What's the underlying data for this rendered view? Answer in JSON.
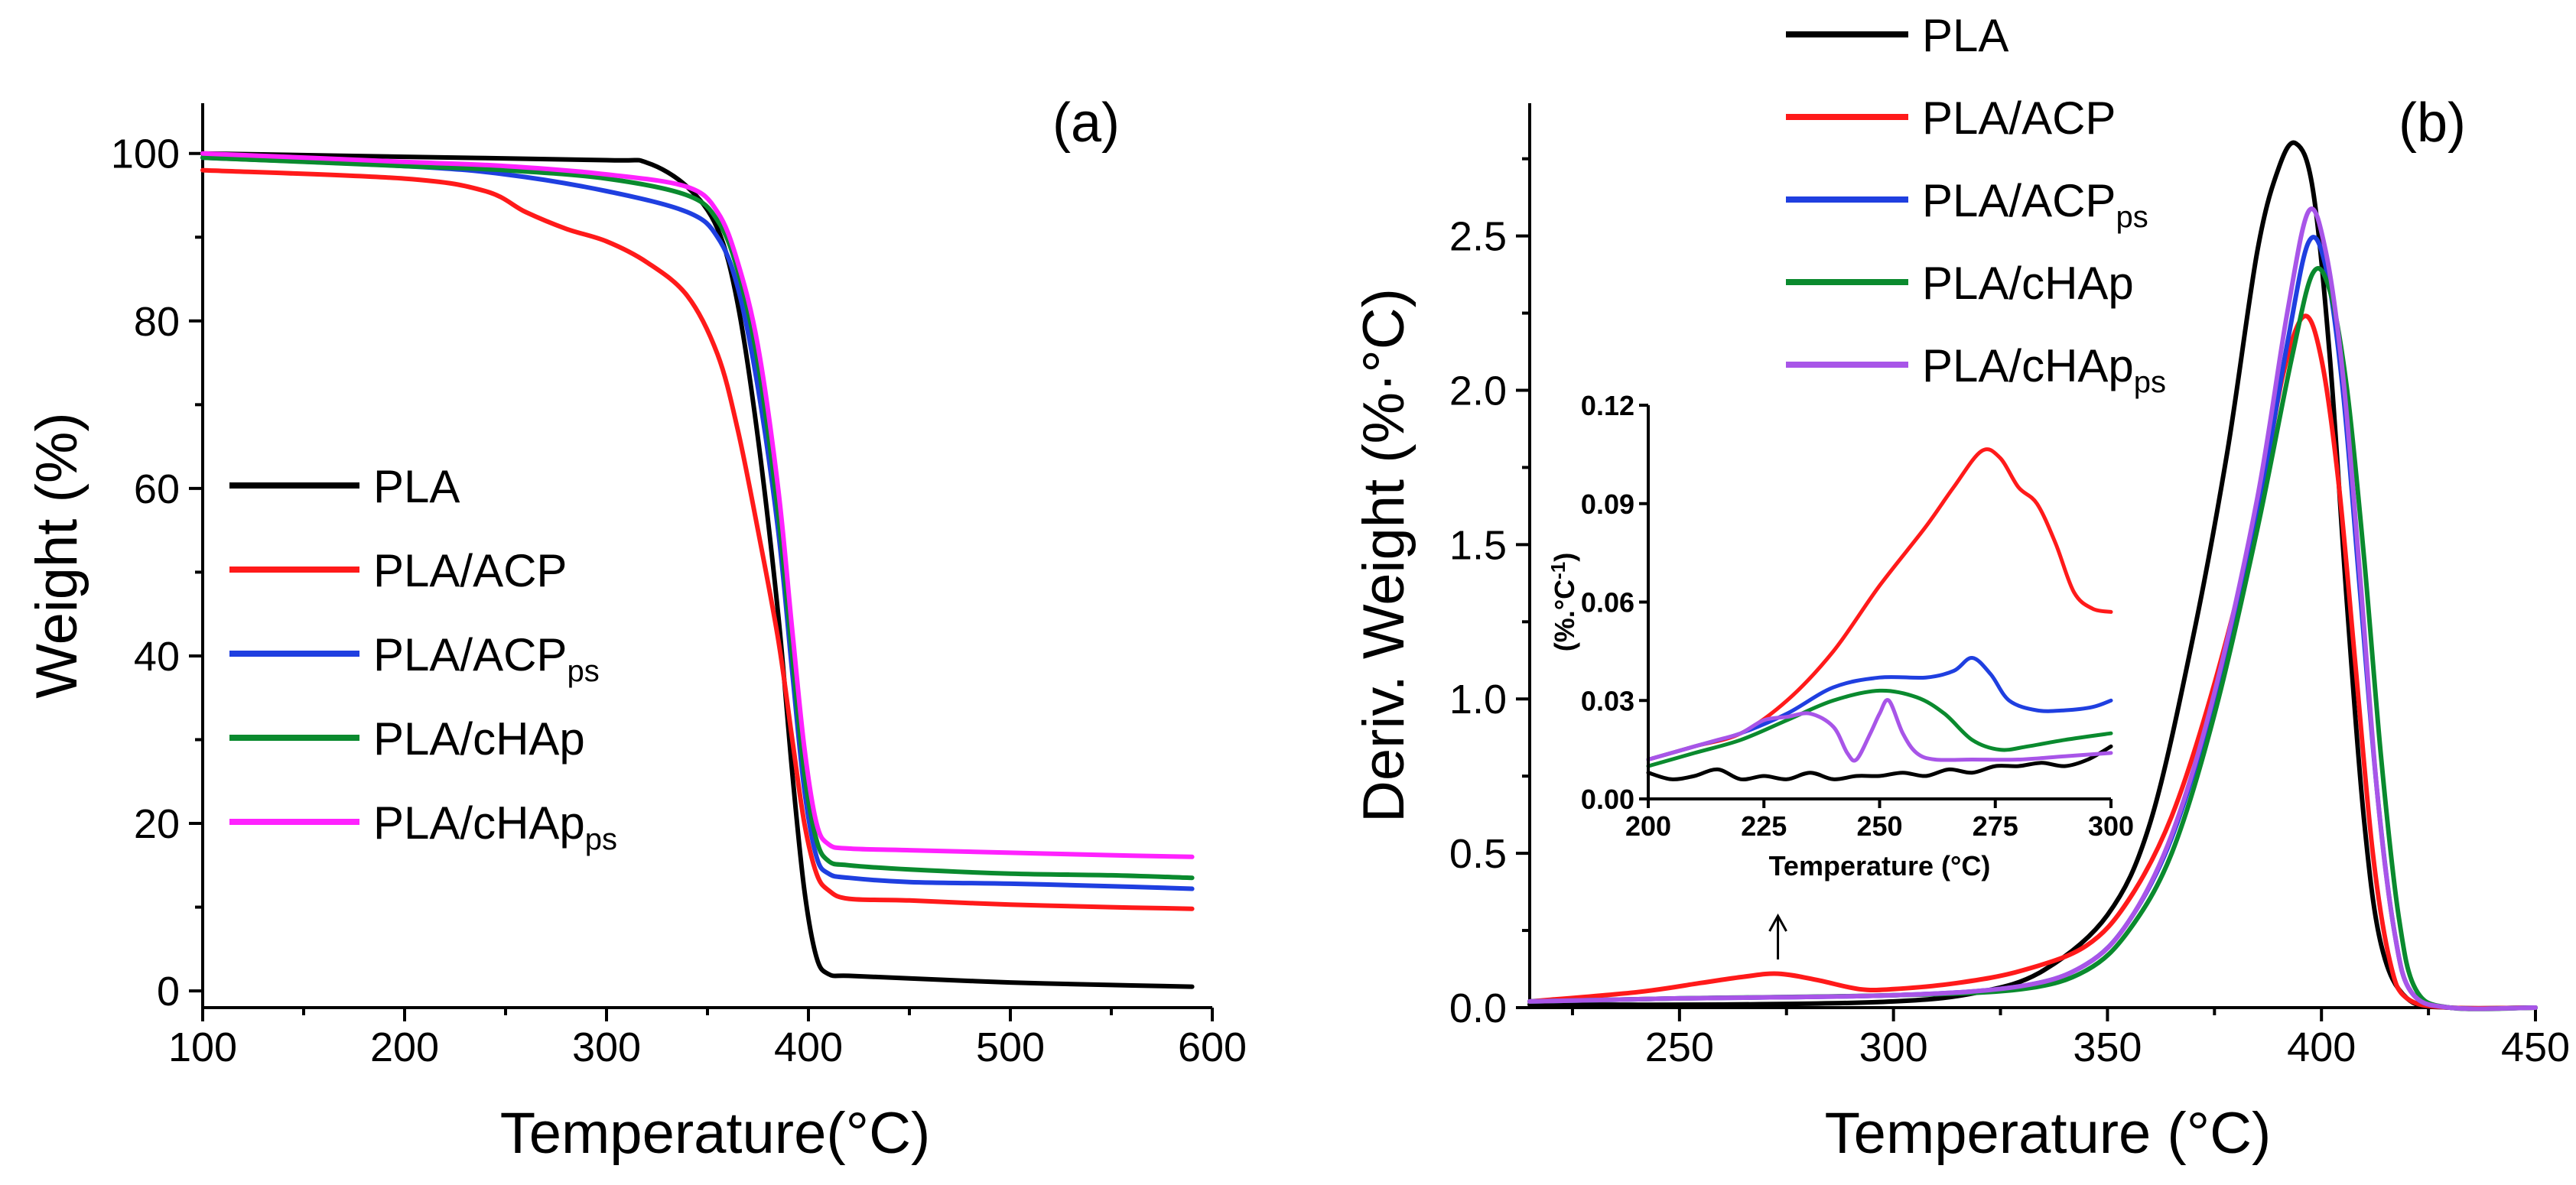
{
  "colors": {
    "PLA": "#000000",
    "PLA/ACP": "#ff1a1a",
    "PLA/ACPps": "#1f3fe0",
    "PLA/cHAp": "#0a8a2e",
    "PLA/cHApps_a": "#ff22ff",
    "PLA/cHApps_b": "#a855e8"
  },
  "chart_data": [
    {
      "type": "line",
      "panel": "(a)",
      "xlabel": "Temperature(°C)",
      "ylabel": "Weight (%)",
      "xlim": [
        100,
        600
      ],
      "ylim": [
        -2,
        106
      ],
      "xticks": [
        "100",
        "200",
        "300",
        "400",
        "500",
        "600"
      ],
      "yticks": [
        "0",
        "20",
        "40",
        "60",
        "80",
        "100"
      ],
      "legend_position": "center-left",
      "legend": [
        {
          "label": "PLA",
          "sub": "",
          "color_key": "PLA"
        },
        {
          "label": "PLA/ACP",
          "sub": "",
          "color_key": "PLA/ACP"
        },
        {
          "label": "PLA/ACP",
          "sub": "ps",
          "color_key": "PLA/ACPps"
        },
        {
          "label": "PLA/cHAp",
          "sub": "",
          "color_key": "PLA/cHAp"
        },
        {
          "label": "PLA/cHAp",
          "sub": "ps",
          "color_key": "PLA/cHApps_a"
        }
      ],
      "series": [
        {
          "name": "PLA",
          "color_key": "PLA",
          "x": [
            100,
            200,
            300,
            320,
            340,
            355,
            365,
            375,
            385,
            392,
            398,
            404,
            410,
            420,
            450,
            500,
            550,
            590
          ],
          "y": [
            100,
            99.6,
            99.2,
            98.9,
            96,
            91,
            82,
            66,
            45,
            26,
            12,
            4,
            2,
            1.8,
            1.5,
            1,
            0.7,
            0.5
          ]
        },
        {
          "name": "PLA/ACP",
          "color_key": "PLA/ACP",
          "x": [
            100,
            200,
            240,
            260,
            280,
            300,
            320,
            340,
            355,
            365,
            375,
            385,
            392,
            398,
            404,
            410,
            420,
            450,
            500,
            550,
            590
          ],
          "y": [
            98,
            97,
            95.5,
            93,
            91,
            89.5,
            87,
            83,
            76,
            67,
            55,
            42,
            30,
            20,
            14,
            12,
            11,
            10.8,
            10.3,
            10,
            9.8
          ]
        },
        {
          "name": "PLA/ACPps",
          "color_key": "PLA/ACPps",
          "x": [
            100,
            200,
            250,
            300,
            340,
            355,
            365,
            375,
            385,
            392,
            398,
            404,
            410,
            420,
            450,
            500,
            550,
            590
          ],
          "y": [
            99.5,
            98.5,
            97.5,
            95.5,
            93,
            90,
            84,
            72,
            55,
            38,
            24,
            16,
            14,
            13.5,
            13,
            12.8,
            12.5,
            12.2
          ]
        },
        {
          "name": "PLA/cHAp",
          "color_key": "PLA/cHAp",
          "x": [
            100,
            200,
            250,
            300,
            340,
            355,
            365,
            375,
            385,
            392,
            398,
            404,
            410,
            420,
            450,
            500,
            550,
            590
          ],
          "y": [
            99.5,
            98.5,
            98,
            97,
            95,
            92,
            86,
            75,
            57,
            40,
            26,
            18,
            15.5,
            15,
            14.5,
            14,
            13.8,
            13.5
          ]
        },
        {
          "name": "PLA/cHApps",
          "color_key": "PLA/cHApps_a",
          "x": [
            100,
            200,
            250,
            300,
            340,
            355,
            365,
            375,
            385,
            392,
            398,
            404,
            410,
            420,
            450,
            500,
            550,
            590
          ],
          "y": [
            100,
            99,
            98.5,
            97.5,
            96,
            93,
            87,
            77,
            60,
            43,
            29,
            20,
            17.5,
            17,
            16.8,
            16.5,
            16.2,
            16
          ]
        }
      ]
    },
    {
      "type": "line",
      "panel": "(b)",
      "xlabel": "Temperature (°C)",
      "ylabel": "Deriv. Weight (%·°C)",
      "xlim": [
        215,
        450
      ],
      "ylim": [
        0,
        2.93
      ],
      "xticks": [
        "250",
        "300",
        "350",
        "400",
        "450"
      ],
      "yticks": [
        "0.0",
        "0.5",
        "1.0",
        "1.5",
        "2.0",
        "2.5"
      ],
      "legend_position": "top-center",
      "legend": [
        {
          "label": "PLA",
          "sub": "",
          "color_key": "PLA"
        },
        {
          "label": "PLA/ACP",
          "sub": "",
          "color_key": "PLA/ACP"
        },
        {
          "label": "PLA/ACP",
          "sub": "ps",
          "color_key": "PLA/ACPps"
        },
        {
          "label": "PLA/cHAp",
          "sub": "",
          "color_key": "PLA/cHAp"
        },
        {
          "label": "PLA/cHAp",
          "sub": "ps",
          "color_key": "PLA/cHApps_b"
        }
      ],
      "arrow_at_x": 273,
      "series": [
        {
          "name": "PLA",
          "color_key": "PLA",
          "x": [
            215,
            260,
            300,
            320,
            335,
            350,
            360,
            370,
            378,
            385,
            390,
            394,
            398,
            402,
            406,
            410,
            414,
            420,
            430,
            450
          ],
          "y": [
            0.01,
            0.01,
            0.02,
            0.05,
            0.12,
            0.3,
            0.6,
            1.2,
            1.8,
            2.45,
            2.72,
            2.8,
            2.65,
            2.1,
            1.3,
            0.6,
            0.2,
            0.03,
            0,
            0
          ]
        },
        {
          "name": "PLA/ACP",
          "color_key": "PLA/ACP",
          "x": [
            215,
            240,
            255,
            265,
            273,
            282,
            292,
            300,
            315,
            330,
            345,
            355,
            365,
            375,
            385,
            391,
            396,
            400,
            404,
            408,
            412,
            416,
            420,
            430,
            450
          ],
          "y": [
            0.02,
            0.05,
            0.08,
            0.1,
            0.11,
            0.09,
            0.06,
            0.06,
            0.08,
            0.12,
            0.2,
            0.35,
            0.62,
            1.05,
            1.6,
            2.05,
            2.24,
            2.1,
            1.7,
            1.1,
            0.5,
            0.15,
            0.03,
            0,
            0
          ]
        },
        {
          "name": "PLA/ACPps",
          "color_key": "PLA/ACPps",
          "x": [
            215,
            250,
            300,
            330,
            345,
            355,
            365,
            375,
            385,
            392,
            397,
            401,
            405,
            409,
            413,
            417,
            421,
            430,
            450
          ],
          "y": [
            0.02,
            0.03,
            0.04,
            0.07,
            0.14,
            0.28,
            0.55,
            1.0,
            1.6,
            2.15,
            2.48,
            2.4,
            2.0,
            1.35,
            0.7,
            0.25,
            0.05,
            0,
            0
          ]
        },
        {
          "name": "PLA/cHAp",
          "color_key": "PLA/cHAp",
          "x": [
            215,
            250,
            300,
            330,
            345,
            355,
            365,
            375,
            385,
            393,
            398,
            402,
            406,
            410,
            414,
            418,
            422,
            430,
            450
          ],
          "y": [
            0.02,
            0.03,
            0.04,
            0.06,
            0.12,
            0.25,
            0.5,
            0.95,
            1.55,
            2.1,
            2.38,
            2.32,
            2.0,
            1.45,
            0.8,
            0.3,
            0.06,
            0,
            0
          ]
        },
        {
          "name": "PLA/cHApps",
          "color_key": "PLA/cHApps_b",
          "x": [
            215,
            250,
            300,
            330,
            345,
            355,
            365,
            375,
            385,
            392,
            397,
            401,
            405,
            409,
            413,
            417,
            421,
            430,
            450
          ],
          "y": [
            0.02,
            0.03,
            0.04,
            0.07,
            0.14,
            0.28,
            0.56,
            1.02,
            1.65,
            2.25,
            2.58,
            2.45,
            2.05,
            1.4,
            0.7,
            0.25,
            0.05,
            0,
            0
          ]
        }
      ],
      "inset": {
        "xlabel": "Temperature (°C)",
        "ylabel": "(%.°C",
        "ylabel_sup": "-1",
        "ylabel_close": ")",
        "xlim": [
          200,
          300
        ],
        "ylim": [
          0,
          0.12
        ],
        "xticks": [
          "200",
          "225",
          "250",
          "275",
          "300"
        ],
        "yticks": [
          "0.00",
          "0.03",
          "0.06",
          "0.09",
          "0.12"
        ],
        "series": [
          {
            "name": "PLA",
            "color_key": "PLA",
            "x": [
              200,
              205,
              210,
              215,
              220,
              225,
              230,
              235,
              240,
              245,
              250,
              255,
              260,
              265,
              270,
              275,
              280,
              285,
              290,
              295,
              300
            ],
            "y": [
              0.008,
              0.006,
              0.007,
              0.009,
              0.006,
              0.007,
              0.006,
              0.008,
              0.006,
              0.007,
              0.007,
              0.008,
              0.007,
              0.009,
              0.008,
              0.01,
              0.01,
              0.011,
              0.01,
              0.012,
              0.016
            ]
          },
          {
            "name": "PLA/ACP",
            "color_key": "PLA/ACP",
            "x": [
              200,
              210,
              220,
              230,
              240,
              250,
              260,
              266,
              272,
              276,
              280,
              284,
              288,
              292,
              296,
              300
            ],
            "y": [
              0.012,
              0.016,
              0.02,
              0.03,
              0.045,
              0.065,
              0.083,
              0.095,
              0.106,
              0.104,
              0.095,
              0.09,
              0.078,
              0.063,
              0.058,
              0.057
            ]
          },
          {
            "name": "PLA/ACPps",
            "color_key": "PLA/ACPps",
            "x": [
              200,
              210,
              220,
              230,
              240,
              250,
              260,
              266,
              270,
              274,
              278,
              284,
              290,
              296,
              300
            ],
            "y": [
              0.012,
              0.016,
              0.02,
              0.026,
              0.034,
              0.037,
              0.037,
              0.039,
              0.043,
              0.038,
              0.03,
              0.027,
              0.027,
              0.028,
              0.03
            ]
          },
          {
            "name": "PLA/cHAp",
            "color_key": "PLA/cHAp",
            "x": [
              200,
              210,
              220,
              230,
              240,
              250,
              258,
              264,
              270,
              276,
              282,
              290,
              300
            ],
            "y": [
              0.01,
              0.014,
              0.018,
              0.024,
              0.03,
              0.033,
              0.031,
              0.026,
              0.018,
              0.015,
              0.016,
              0.018,
              0.02
            ]
          },
          {
            "name": "PLA/cHApps",
            "color_key": "PLA/cHApps_b",
            "x": [
              200,
              210,
              215,
              220,
              225,
              230,
              235,
              240,
              243,
              245,
              248,
              250,
              252,
              255,
              258,
              262,
              270,
              280,
              290,
              300
            ],
            "y": [
              0.012,
              0.016,
              0.018,
              0.02,
              0.024,
              0.025,
              0.026,
              0.022,
              0.014,
              0.012,
              0.02,
              0.026,
              0.03,
              0.02,
              0.014,
              0.012,
              0.012,
              0.012,
              0.013,
              0.014
            ]
          }
        ]
      }
    }
  ]
}
